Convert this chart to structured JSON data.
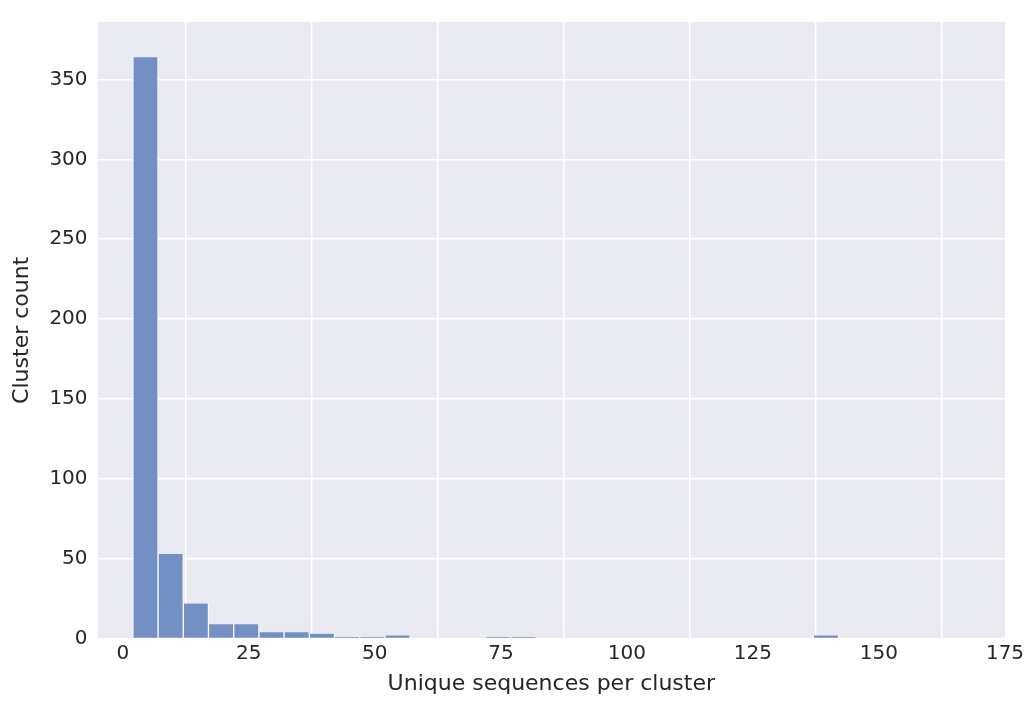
{
  "chart_data": {
    "type": "histogram",
    "xlabel": "Unique sequences per cluster",
    "ylabel": "Cluster count",
    "bins": [
      2,
      7,
      12,
      17,
      22,
      27,
      32,
      37,
      42,
      47,
      52,
      57,
      62,
      67,
      72,
      77,
      82,
      87,
      92,
      97,
      102,
      107,
      112,
      117,
      122,
      127,
      132,
      137,
      142,
      147,
      152,
      157,
      162,
      167,
      172
    ],
    "values": [
      364,
      53,
      22,
      9,
      9,
      4,
      4,
      3,
      1,
      1,
      2,
      0,
      0,
      0,
      1,
      1,
      0,
      0,
      0,
      0,
      0,
      0,
      0,
      0,
      0,
      0,
      0,
      2,
      0,
      0,
      0,
      0,
      0,
      0
    ],
    "color": "#7390c4",
    "xlim": [
      -5,
      175
    ],
    "ylim": [
      0,
      386
    ],
    "xticks": [
      0,
      25,
      50,
      75,
      100,
      125,
      150,
      175
    ],
    "yticks": [
      0,
      50,
      100,
      150,
      200,
      250,
      300,
      350
    ],
    "grid": true
  }
}
